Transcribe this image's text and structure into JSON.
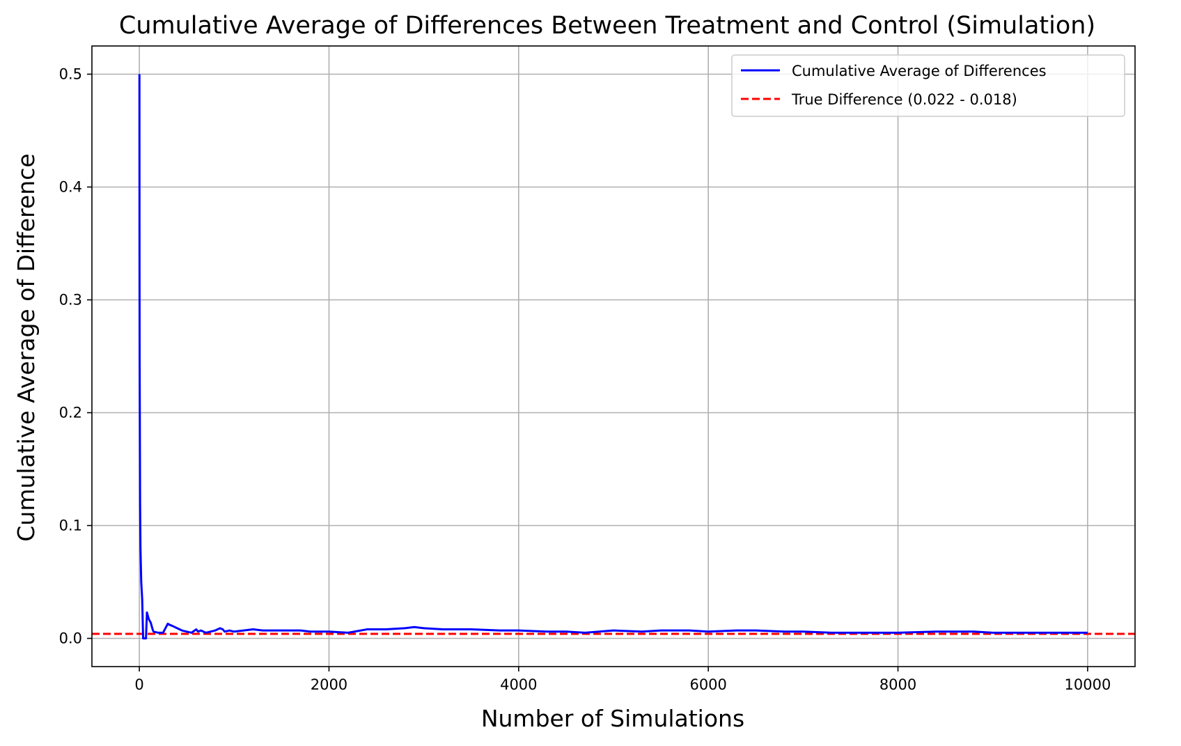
{
  "chart_data": {
    "type": "line",
    "title": "Cumulative Average of Differences Between Treatment and Control (Simulation)",
    "xlabel": "Number of Simulations",
    "ylabel": "Cumulative Average of Difference",
    "xlim": [
      -500,
      10500
    ],
    "ylim": [
      -0.025,
      0.525
    ],
    "xticks": [
      0,
      2000,
      4000,
      6000,
      8000,
      10000
    ],
    "xtick_labels": [
      "0",
      "2000",
      "4000",
      "6000",
      "8000",
      "10000"
    ],
    "yticks": [
      0.0,
      0.1,
      0.2,
      0.3,
      0.4,
      0.5
    ],
    "ytick_labels": [
      "0.0",
      "0.1",
      "0.2",
      "0.3",
      "0.4",
      "0.5"
    ],
    "grid": true,
    "legend_position": "top-right",
    "series": [
      {
        "name": "Cumulative Average of Differences",
        "color": "#0000ff",
        "style": "solid",
        "x": [
          1,
          2,
          3,
          5,
          8,
          12,
          20,
          30,
          40,
          45,
          50,
          55,
          60,
          70,
          80,
          90,
          100,
          120,
          140,
          150,
          200,
          250,
          300,
          320,
          350,
          400,
          450,
          500,
          550,
          600,
          620,
          650,
          700,
          750,
          800,
          850,
          880,
          900,
          950,
          1000,
          1100,
          1200,
          1300,
          1500,
          1700,
          1800,
          2000,
          2200,
          2400,
          2600,
          2800,
          2900,
          3000,
          3200,
          3500,
          3800,
          4000,
          4300,
          4500,
          4700,
          5000,
          5300,
          5500,
          5800,
          6000,
          6300,
          6500,
          6800,
          7000,
          7300,
          7500,
          8000,
          8400,
          8800,
          9000,
          9500,
          10000
        ],
        "y": [
          0.5,
          0.333,
          0.25,
          0.2,
          0.12,
          0.08,
          0.05,
          0.035,
          0.0,
          0.0,
          0.0,
          0.0,
          0.0,
          0.0,
          0.023,
          0.02,
          0.017,
          0.014,
          0.008,
          0.006,
          0.005,
          0.005,
          0.013,
          0.012,
          0.011,
          0.009,
          0.007,
          0.006,
          0.005,
          0.008,
          0.006,
          0.007,
          0.005,
          0.006,
          0.007,
          0.009,
          0.008,
          0.006,
          0.007,
          0.006,
          0.007,
          0.008,
          0.007,
          0.007,
          0.007,
          0.006,
          0.006,
          0.005,
          0.008,
          0.008,
          0.009,
          0.01,
          0.009,
          0.008,
          0.008,
          0.007,
          0.007,
          0.006,
          0.006,
          0.005,
          0.007,
          0.006,
          0.007,
          0.007,
          0.006,
          0.007,
          0.007,
          0.006,
          0.006,
          0.005,
          0.005,
          0.005,
          0.006,
          0.006,
          0.005,
          0.005,
          0.005
        ]
      },
      {
        "name": "True Difference (0.022 - 0.018)",
        "color": "#ff0000",
        "style": "dashed",
        "y_constant": 0.004
      }
    ]
  }
}
